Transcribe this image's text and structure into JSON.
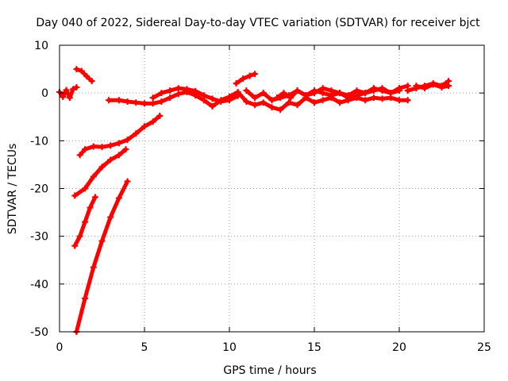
{
  "chart_data": {
    "type": "scatter",
    "title": "Day 040 of 2022, Sidereal Day-to-day VTEC variation (SDTVAR) for receiver bjct",
    "xlabel": "GPS time / hours",
    "ylabel": "SDTVAR / TECUs",
    "xlim": [
      0,
      25
    ],
    "ylim": [
      -50,
      10
    ],
    "xticks": [
      0,
      5,
      10,
      15,
      20,
      25
    ],
    "yticks": [
      -50,
      -40,
      -30,
      -20,
      -10,
      0,
      10
    ],
    "grid": true,
    "marker": "+",
    "color": "#ff0000",
    "series": [
      {
        "x": [
          0.0,
          0.2,
          0.4,
          0.6,
          0.8,
          1.0
        ],
        "y": [
          0.2,
          -0.8,
          0.6,
          -1.0,
          0.8,
          1.2
        ]
      },
      {
        "x": [
          1.0,
          1.3,
          1.6,
          1.9
        ],
        "y": [
          5.0,
          4.6,
          3.5,
          2.5
        ]
      },
      {
        "x": [
          1.2,
          1.5,
          2.0,
          2.5,
          3.0,
          3.5,
          4.0,
          4.5,
          5.0,
          5.5,
          5.9
        ],
        "y": [
          -13.0,
          -11.8,
          -11.2,
          -11.3,
          -11.0,
          -10.5,
          -9.8,
          -8.5,
          -7.0,
          -6.0,
          -4.8
        ]
      },
      {
        "x": [
          0.9,
          1.5,
          2.0,
          2.5,
          3.0,
          3.5,
          3.9
        ],
        "y": [
          -21.5,
          -20.0,
          -17.5,
          -15.5,
          -14.0,
          -13.0,
          -11.8
        ]
      },
      {
        "x": [
          0.9,
          1.2,
          1.5,
          1.8,
          2.1
        ],
        "y": [
          -32.0,
          -30.0,
          -27.0,
          -24.0,
          -21.8
        ]
      },
      {
        "x": [
          1.0,
          1.5,
          2.0,
          2.5,
          3.0,
          3.5,
          4.0
        ],
        "y": [
          -50.0,
          -43.0,
          -36.5,
          -31.0,
          -26.0,
          -22.0,
          -18.5
        ]
      },
      {
        "x": [
          2.9,
          3.5,
          4.0,
          4.5,
          5.0,
          5.5,
          6.0,
          6.5,
          7.0,
          7.5,
          8.0,
          8.5,
          9.0,
          9.5,
          10.0,
          10.5,
          11.0,
          11.5,
          12.0,
          12.5,
          13.0,
          13.5,
          14.0,
          14.5,
          15.0,
          15.5,
          16.0,
          16.5,
          17.0,
          17.5,
          18.0,
          18.5,
          19.0,
          19.5,
          20.0,
          20.5
        ],
        "y": [
          -1.5,
          -1.5,
          -1.8,
          -2.0,
          -2.2,
          -2.2,
          -1.8,
          -1.0,
          -0.2,
          0.2,
          -0.5,
          -1.5,
          -2.8,
          -1.5,
          -0.8,
          0.2,
          -1.8,
          -2.5,
          -2.0,
          -3.0,
          -3.5,
          -2.0,
          -2.5,
          -1.0,
          -2.0,
          -1.5,
          -1.0,
          -2.0,
          -1.5,
          -1.0,
          -1.5,
          -1.0,
          -1.2,
          -1.0,
          -1.5,
          -1.5
        ]
      },
      {
        "x": [
          5.5,
          6.0,
          6.5,
          7.0,
          7.5,
          8.0,
          8.5,
          9.0,
          9.5,
          10.0,
          10.5
        ],
        "y": [
          -1.0,
          0.0,
          0.5,
          1.0,
          0.8,
          0.4,
          -0.5,
          -1.2,
          -1.8,
          -1.5,
          -0.6
        ]
      },
      {
        "x": [
          10.4,
          10.8,
          11.2,
          11.5
        ],
        "y": [
          2.0,
          3.0,
          3.6,
          4.0
        ]
      },
      {
        "x": [
          11.0,
          11.5,
          12.0,
          12.5,
          13.0,
          13.5,
          14.0,
          14.5,
          15.0,
          15.5,
          16.0,
          16.5,
          17.0,
          17.5,
          18.0,
          18.5,
          19.0,
          19.5,
          20.0,
          20.5
        ],
        "y": [
          0.5,
          -1.0,
          0.0,
          -1.5,
          -1.0,
          -0.5,
          0.5,
          -0.5,
          0.5,
          0.0,
          -0.5,
          0.0,
          -1.0,
          -0.5,
          0.0,
          0.5,
          1.0,
          0.0,
          1.0,
          1.5
        ]
      },
      {
        "x": [
          12.8,
          13.2,
          13.6,
          14.0,
          14.5,
          15.0,
          15.5,
          16.0,
          16.5,
          17.0,
          17.5,
          18.0,
          18.5,
          19.0,
          19.5,
          20.0
        ],
        "y": [
          -1.0,
          0.0,
          -1.0,
          0.5,
          -0.5,
          0.0,
          1.0,
          0.5,
          0.0,
          -0.5,
          0.5,
          0.0,
          1.0,
          0.5,
          0.0,
          0.5
        ]
      },
      {
        "x": [
          20.5,
          21.0,
          21.5,
          22.0,
          22.5,
          22.9
        ],
        "y": [
          0.5,
          1.0,
          1.5,
          2.0,
          1.5,
          2.5
        ]
      },
      {
        "x": [
          21.0,
          21.5,
          22.0,
          22.5,
          22.9
        ],
        "y": [
          1.5,
          1.0,
          1.8,
          1.2,
          1.5
        ]
      }
    ]
  }
}
